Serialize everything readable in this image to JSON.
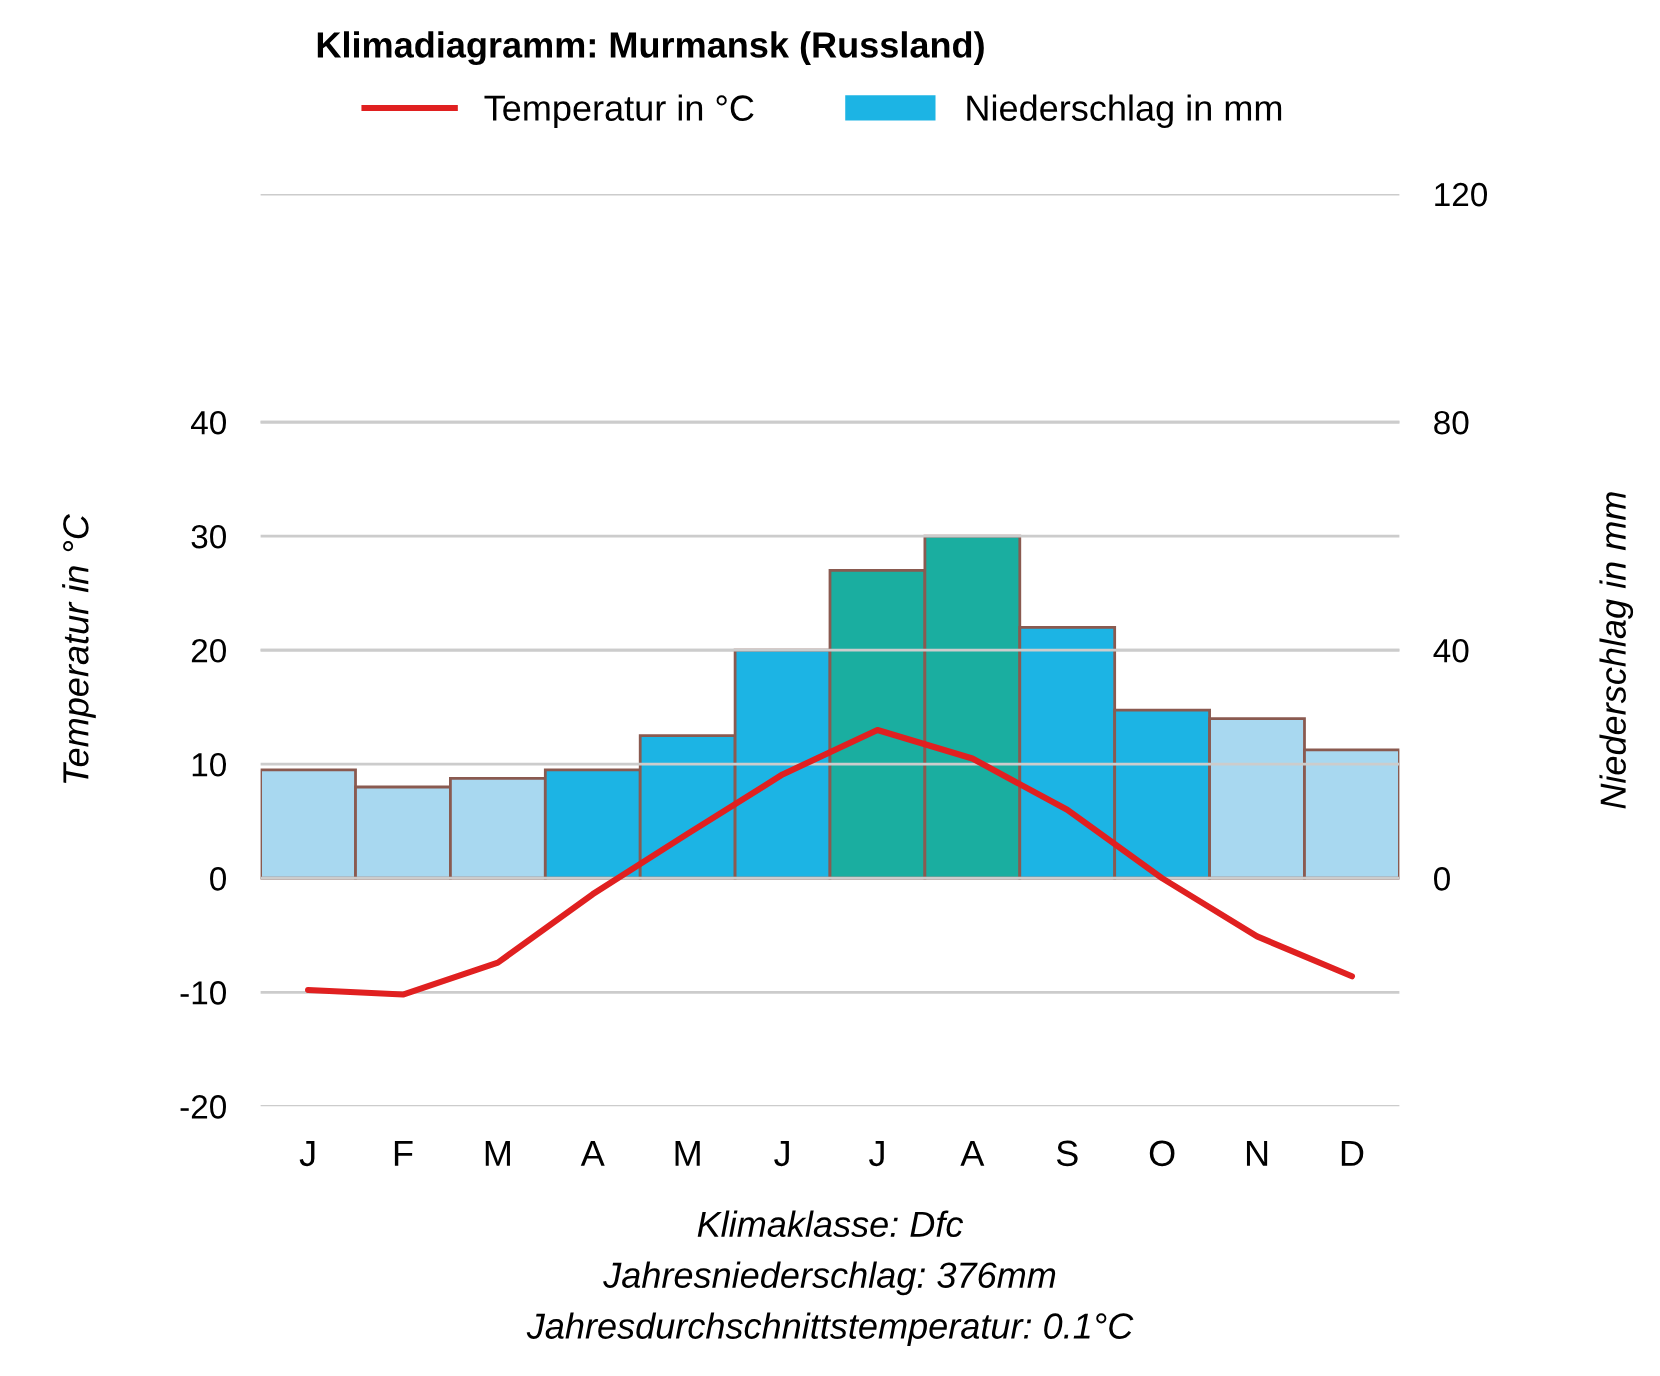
{
  "chart_data": {
    "type": "bar",
    "title": "Klimadiagramm: Murmansk (Russland)",
    "categories": [
      "J",
      "F",
      "M",
      "A",
      "M",
      "J",
      "J",
      "A",
      "S",
      "O",
      "N",
      "D"
    ],
    "series": [
      {
        "name": "Niederschlag in mm",
        "axis": "y2",
        "color": "#1cb4e4",
        "colors": [
          "#a8d8f0",
          "#a8d8f0",
          "#a8d8f0",
          "#1cb4e4",
          "#1cb4e4",
          "#1cb4e4",
          "#1aaea0",
          "#1aaea0",
          "#1cb4e4",
          "#1cb4e4",
          "#a8d8f0",
          "#a8d8f0"
        ],
        "values": [
          19,
          16,
          17.5,
          19,
          25,
          40,
          54,
          60,
          44,
          29.5,
          28,
          22.5
        ]
      },
      {
        "name": "Temperatur in °C",
        "type": "line",
        "color": "#e02020",
        "values": [
          -9.8,
          -10.2,
          -7.4,
          -1.4,
          3.9,
          9.1,
          13,
          10.5,
          6,
          0,
          -5.1,
          -8.6
        ]
      }
    ],
    "ylabel": "Temperatur in °C",
    "y2label": "Niederschlag in mm",
    "ylim": [
      -20,
      60
    ],
    "yticks": [
      -20,
      -10,
      0,
      10,
      20,
      30,
      40
    ],
    "y2lim": [
      -40,
      120
    ],
    "y2ticks": [
      0,
      40,
      80,
      120
    ],
    "grid": "y",
    "legend": "top",
    "marker": "none",
    "line_style": "solid",
    "annotations": [
      "Klimaklasse: Dfc",
      "Jahresniederschlag: 376mm",
      "Jahresdurchschnittstemperatur: 0.1°C"
    ]
  }
}
